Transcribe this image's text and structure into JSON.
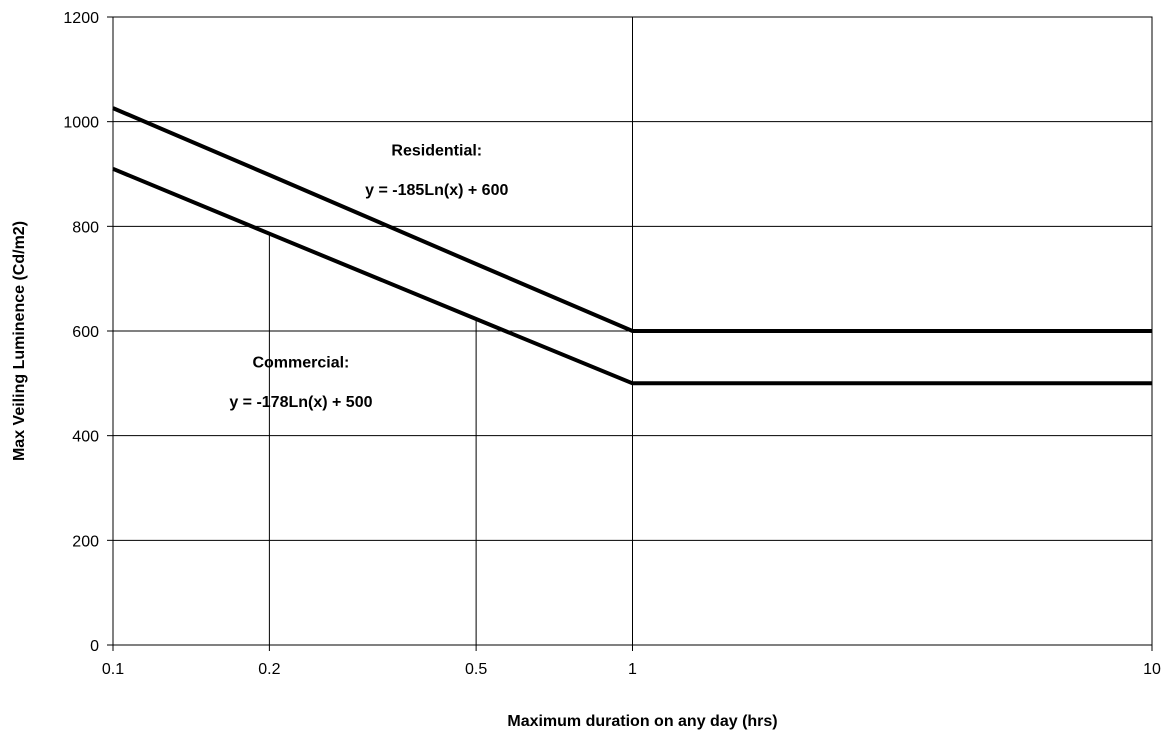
{
  "chart_data": {
    "type": "line",
    "title": "",
    "xlabel": "Maximum duration on any day (hrs)",
    "ylabel": "Max Veiling Luminence (Cd/m2)",
    "x_scale": "log",
    "xlim": [
      0.1,
      10
    ],
    "ylim": [
      0,
      1200
    ],
    "x_ticks": [
      0.1,
      0.2,
      0.5,
      1,
      10
    ],
    "x_tick_labels": [
      "0.1",
      "0.2",
      "0.5",
      "1",
      "10"
    ],
    "y_ticks": [
      0,
      200,
      400,
      600,
      800,
      1000,
      1200
    ],
    "y_tick_labels": [
      "0",
      "200",
      "400",
      "600",
      "800",
      "1000",
      "1200"
    ],
    "grid": "horizontal",
    "series": [
      {
        "x": [
          0.1,
          0.2,
          0.5,
          1,
          10
        ],
        "values": [
          1026,
          898,
          728,
          600,
          600
        ],
        "color": "#000000"
      },
      {
        "x": [
          0.1,
          0.2,
          0.5,
          1,
          10
        ],
        "values": [
          910,
          786,
          623,
          500,
          500
        ],
        "color": "#000000"
      }
    ],
    "reference_lines": [
      {
        "x": 0.2,
        "y_from": 0,
        "y_to": 786
      },
      {
        "x": 0.5,
        "y_from": 0,
        "y_to": 623
      },
      {
        "x": 1,
        "y_from": 0,
        "y_to": 1200
      }
    ],
    "annotations": [
      {
        "label": "Residential:",
        "x": 0.42,
        "y": 935
      },
      {
        "label": "y = -185Ln(x) + 600",
        "x": 0.42,
        "y": 860
      },
      {
        "label": "Commercial:",
        "x": 0.23,
        "y": 530
      },
      {
        "label": "y = -178Ln(x) + 500",
        "x": 0.23,
        "y": 455
      }
    ]
  }
}
